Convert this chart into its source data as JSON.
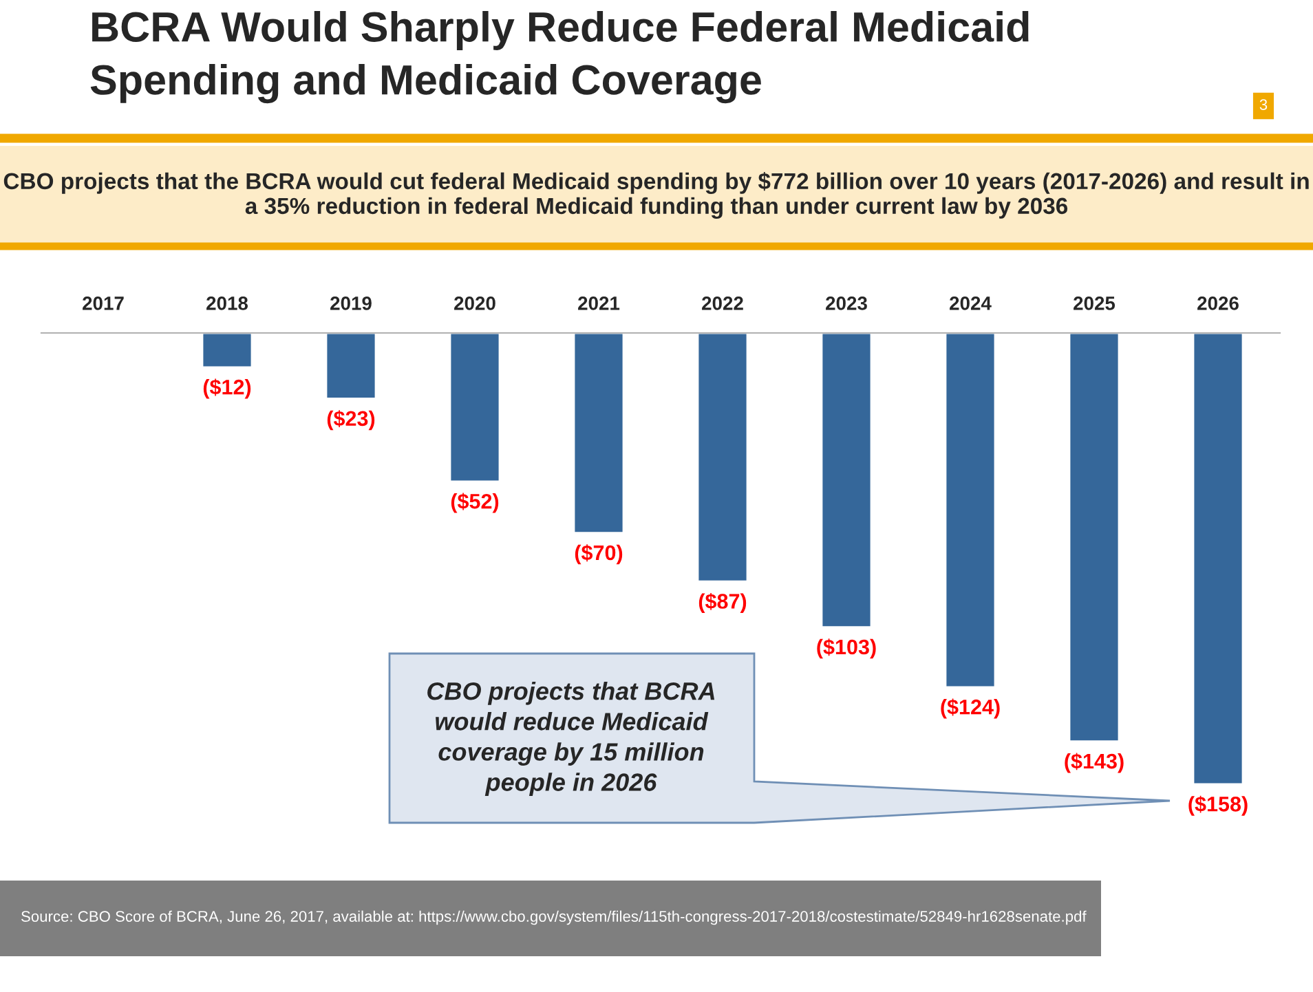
{
  "chart_data": {
    "type": "bar",
    "title": "BCRA Would Sharply Reduce Federal Medicaid\nSpending and Medicaid Coverage",
    "subtitle": "CBO projects that the BCRA would cut federal Medicaid spending by $772 billion over 10 years (2017-2026) and result in a 35% reduction in federal Medicaid funding than under current law by 2036",
    "categories": [
      "2017",
      "2018",
      "2019",
      "2020",
      "2021",
      "2022",
      "2023",
      "2024",
      "2025",
      "2026"
    ],
    "values": [
      null,
      -12,
      -23,
      -52,
      -70,
      -87,
      -103,
      -124,
      -143,
      -158
    ],
    "value_labels": [
      null,
      "($12)",
      "($23)",
      "($52)",
      "($70)",
      "($87)",
      "($103)",
      "($124)",
      "($143)",
      "($158)"
    ],
    "color": "#35679a",
    "annotations": [
      "3",
      "CBO projects that BCRA\nwould reduce Medicaid\ncoverage by 15 million\npeople in 2026",
      "Source: CBO Score of BCRA, June 26, 2017, available at: https://www.cbo.gov/system/files/115th-congress-2017-2018/costestimate/52849-hr1628senate.pdf"
    ],
    "grid": false,
    "legend": false
  }
}
